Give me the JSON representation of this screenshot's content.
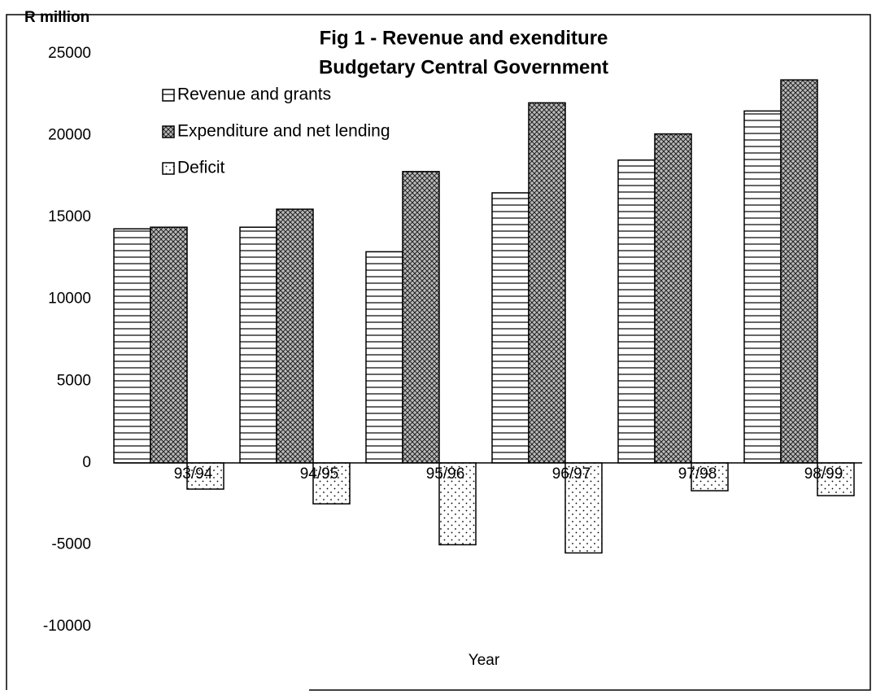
{
  "chart_data": {
    "type": "bar",
    "title": "Fig 1 -  Revenue and exenditure",
    "subtitle": "Budgetary Central Government",
    "y_label": "R million",
    "x_label": "Year",
    "categories": [
      "93/94",
      "94/95",
      "95/96",
      "96/97",
      "97/98",
      "98/99"
    ],
    "series": [
      {
        "name": "Revenue and grants",
        "color": "#000000",
        "pattern": "horizontal",
        "values": [
          14300,
          14400,
          12900,
          16500,
          18500,
          21500
        ]
      },
      {
        "name": "Expenditure and net lending",
        "color": "#000000",
        "pattern": "crosshatch",
        "values": [
          14400,
          15500,
          17800,
          22000,
          20100,
          23400
        ]
      },
      {
        "name": "Deficit",
        "color": "#000000",
        "pattern": "dots",
        "values": [
          -1600,
          -2500,
          -5000,
          -5500,
          -1700,
          -2000
        ]
      }
    ],
    "ylim": [
      -10000,
      25000
    ],
    "yticks": [
      -10000,
      -5000,
      0,
      5000,
      10000,
      15000,
      20000,
      25000
    ],
    "legend": "top-left"
  }
}
